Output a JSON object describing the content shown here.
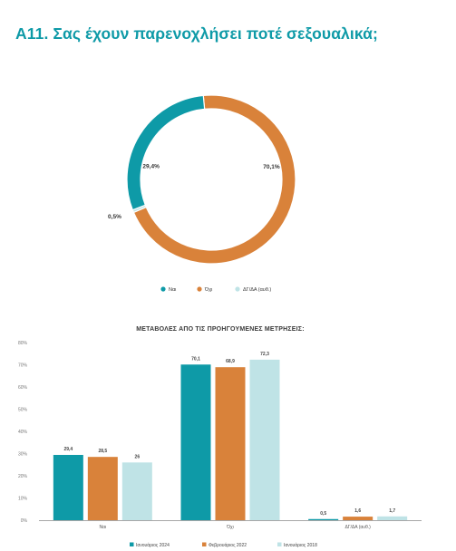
{
  "title": "A11. Σας έχουν παρενοχλήσει ποτέ σεξουαλικά;",
  "colors": {
    "teal": "#0e9aa7",
    "orange": "#d9823a",
    "light": "#bfe3e6",
    "title": "#0e9aa7",
    "text": "#4a4a4a"
  },
  "chart_data": [
    {
      "type": "pie",
      "variant": "donut",
      "labels": [
        "Ναι",
        "Όχι",
        "ΔΓ/ΔΑ (αυθ.)"
      ],
      "values": [
        29.4,
        70.1,
        0.5
      ],
      "value_labels": [
        "29,4%",
        "70,1%",
        "0,5%"
      ],
      "colors": [
        "#0e9aa7",
        "#d9823a",
        "#bfe3e6"
      ],
      "legend_position": "bottom"
    },
    {
      "type": "bar",
      "title": "ΜΕΤΑΒΟΛΕΣ ΑΠΟ ΤΙΣ ΠΡΟΗΓΟΥΜΕΝΕΣ ΜΕΤΡΗΣΕΙΣ:",
      "categories": [
        "Ναι",
        "Όχι",
        "ΔΓ/ΔΑ (αυθ.)"
      ],
      "series": [
        {
          "name": "Ιανουάριος 2024",
          "values": [
            29.4,
            70.1,
            0.5
          ],
          "labels": [
            "29,4",
            "70,1",
            "0,5"
          ],
          "color": "#0e9aa7"
        },
        {
          "name": "Φεβρουάριος 2022",
          "values": [
            28.5,
            68.9,
            1.6
          ],
          "labels": [
            "28,5",
            "68,9",
            "1,6"
          ],
          "color": "#d9823a"
        },
        {
          "name": "Ιανουάριος 2018",
          "values": [
            26,
            72.3,
            1.7
          ],
          "labels": [
            "26",
            "72,3",
            "1,7"
          ],
          "color": "#bfe3e6"
        }
      ],
      "yticks": [
        "0%",
        "10%",
        "20%",
        "30%",
        "40%",
        "50%",
        "60%",
        "70%",
        "80%"
      ],
      "ylim": [
        0,
        80
      ],
      "grid": false,
      "legend_position": "bottom"
    }
  ]
}
